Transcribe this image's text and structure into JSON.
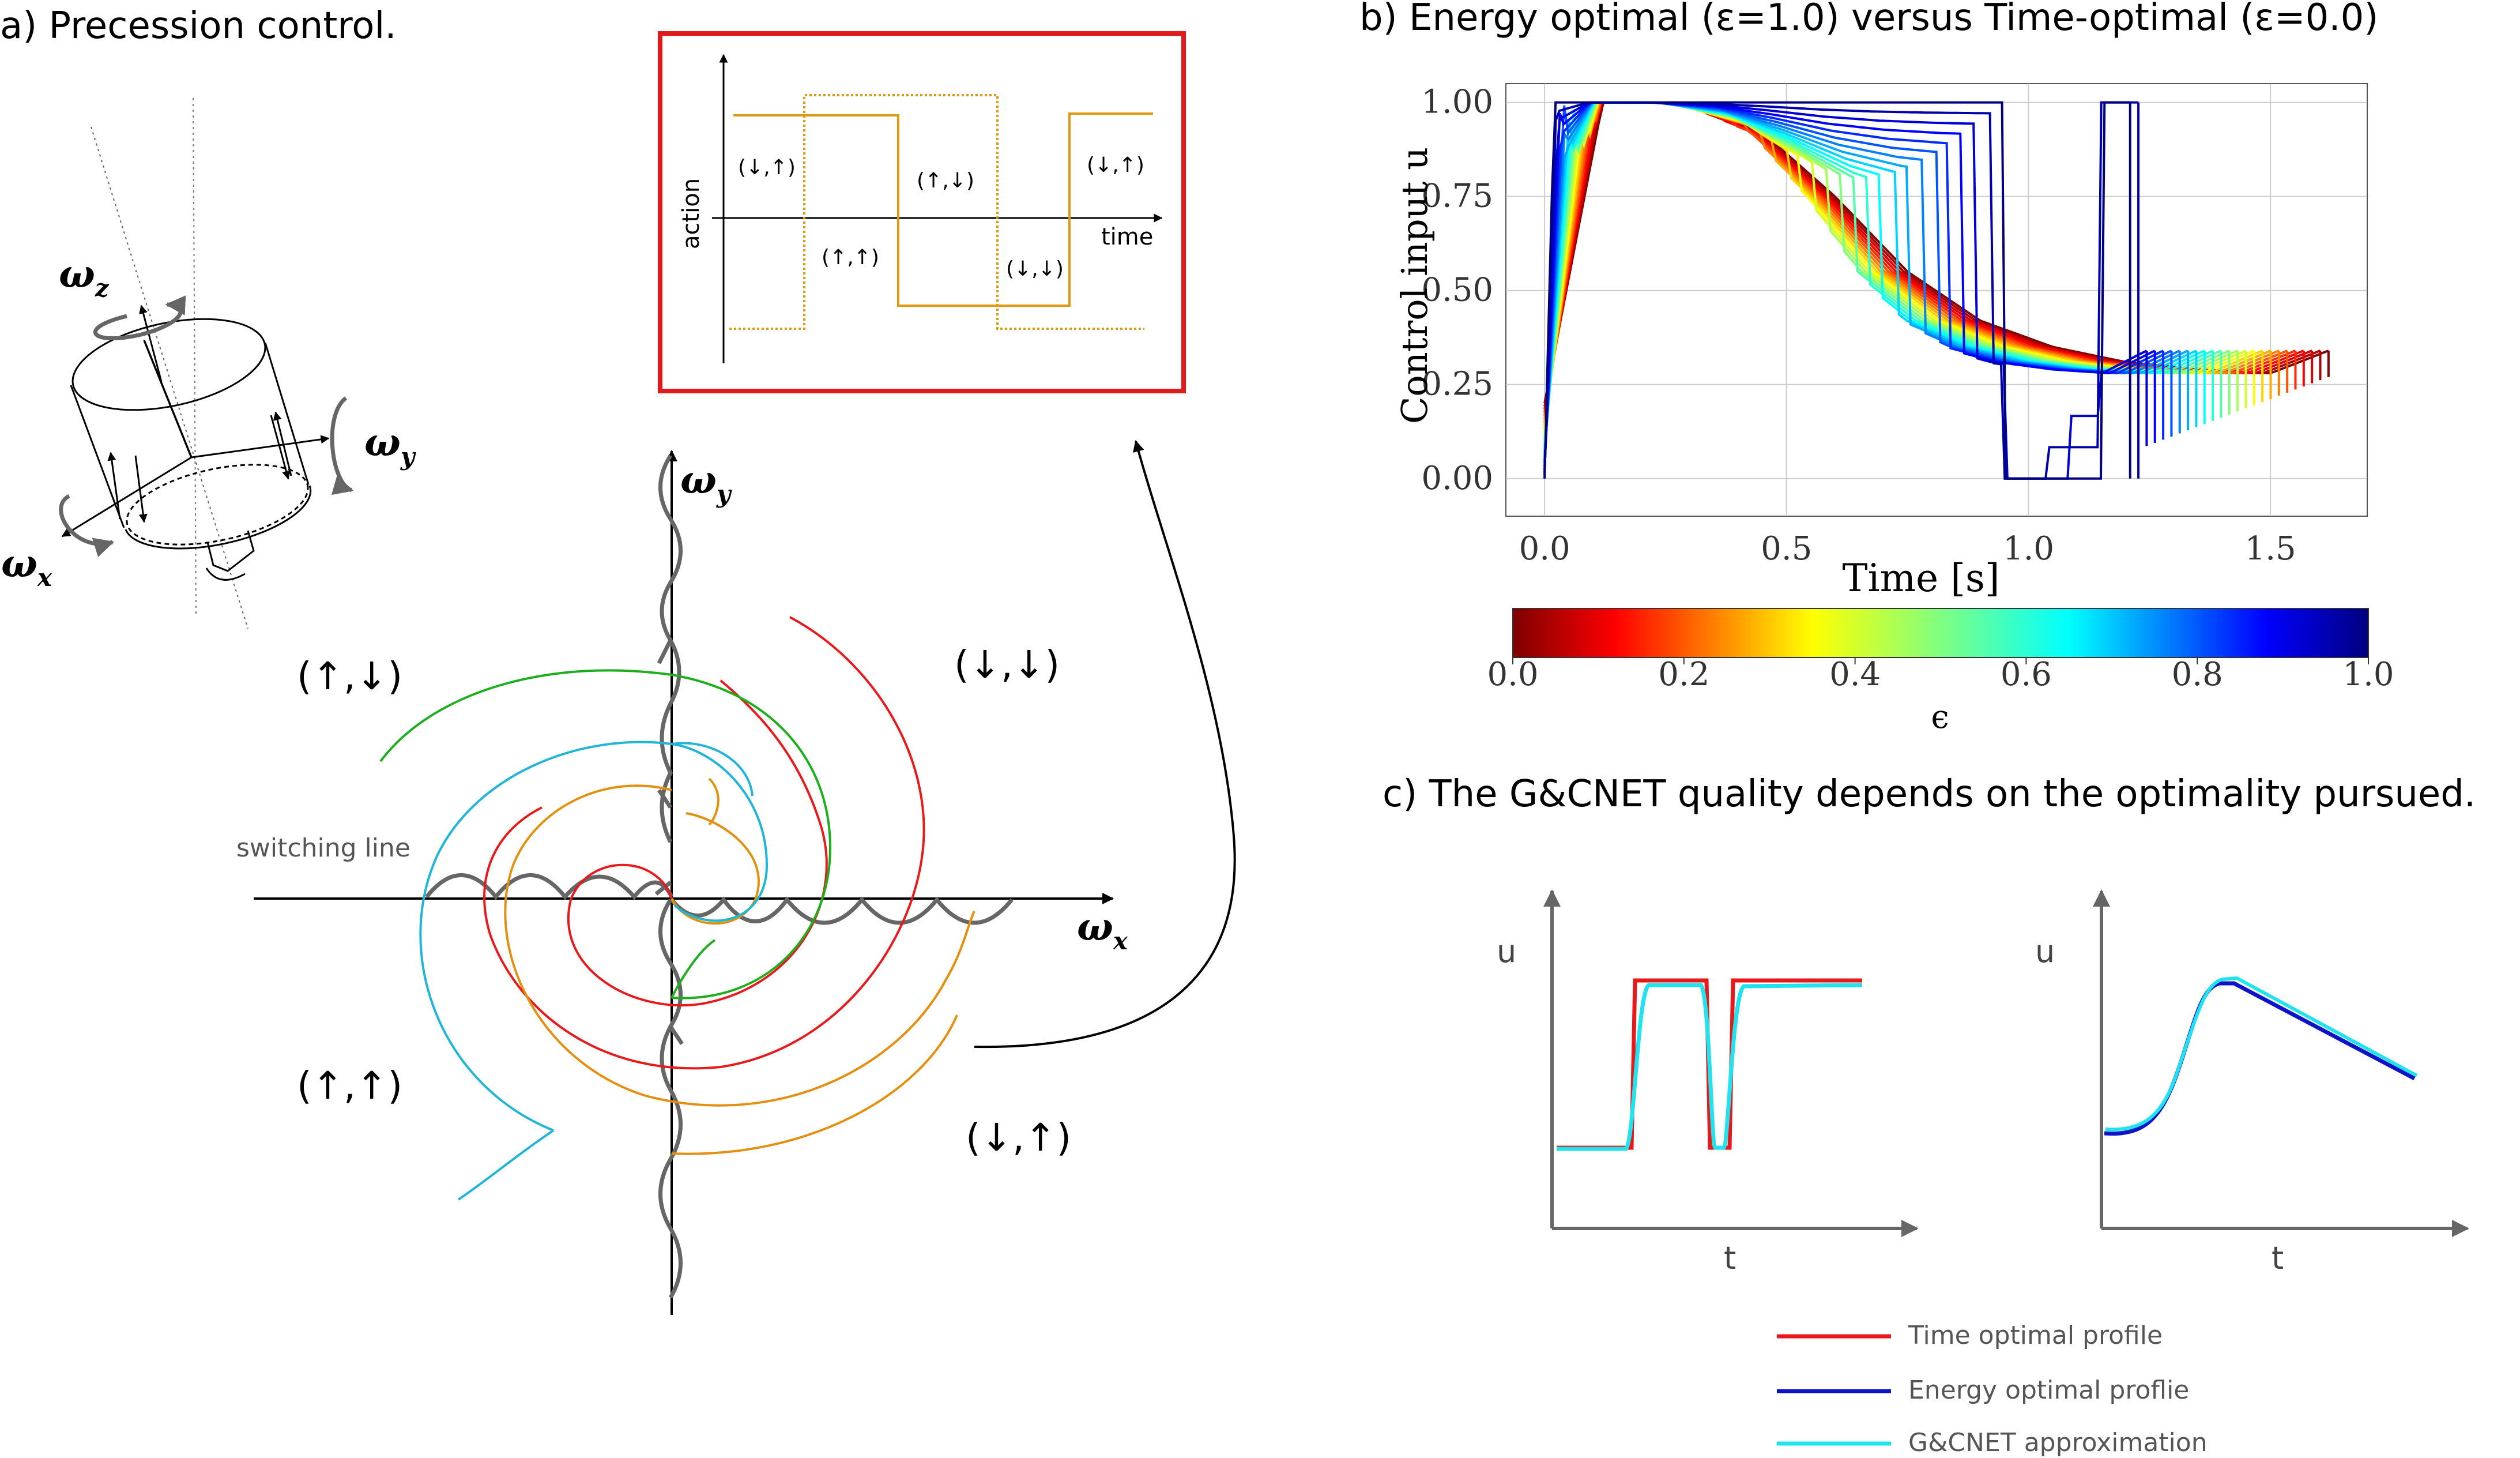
{
  "panel_a": {
    "title": "a) Precession control.",
    "axis_labels": {
      "wx": "ω",
      "wx_sub": "x",
      "wy": "ω",
      "wy_sub": "y",
      "wz": "ω",
      "wz_sub": "z"
    },
    "switching_label": "switching line",
    "quadrants": {
      "upper_left": "(↑,↓)",
      "upper_right": "(↓,↓)",
      "lower_left": "(↑,↑)",
      "lower_right": "(↓,↑)"
    },
    "spiral_colors": [
      "#e8191b",
      "#e38f10",
      "#20b5d6",
      "#1cae1c"
    ],
    "inset": {
      "ylabel": "action",
      "xlabel": "time",
      "labels": [
        "(↓,↑)",
        "(↑,↑)",
        "(↑,↓)",
        "(↓,↓)",
        "(↓,↑)"
      ],
      "line_color": "#e09a12",
      "border_color": "#e11b1b"
    }
  },
  "panel_b": {
    "title": "b) Energy optimal (ε=1.0) versus Time-optimal (ε=0.0)",
    "colorbar_label": "ϵ",
    "colorbar_ticks": [
      "0.0",
      "0.2",
      "0.4",
      "0.6",
      "0.8",
      "1.0"
    ]
  },
  "panel_c": {
    "title": "c) The G&CNET quality depends on the optimality pursued.",
    "ylabel": "u",
    "xlabel": "t",
    "legend": [
      {
        "label": "Time optimal profile",
        "color": "#e8191b"
      },
      {
        "label": "Energy optimal proflie",
        "color": "#0d14c8"
      },
      {
        "label": "G&CNET approximation",
        "color": "#1fe3ee"
      }
    ]
  },
  "chart_data": {
    "type": "line",
    "xlabel": "Time [s]",
    "ylabel": "Control input u",
    "xlim": [
      -0.08,
      1.7
    ],
    "ylim": [
      -0.1,
      1.05
    ],
    "xticks": [
      "0.0",
      "0.5",
      "1.0",
      "1.5"
    ],
    "yticks": [
      "0.00",
      "0.25",
      "0.50",
      "0.75",
      "1.00"
    ],
    "grid": true,
    "colormap": "jet_reversed",
    "series_count": 25,
    "epsilon_range": [
      0.0,
      1.0
    ],
    "energy_optimal_profile": {
      "epsilon": 1.0,
      "x": [
        0.0,
        0.12,
        0.28,
        0.45,
        0.6,
        0.75,
        0.9,
        1.05,
        1.2,
        1.35,
        1.5,
        1.62
      ],
      "y": [
        0.2,
        1.0,
        1.0,
        0.92,
        0.75,
        0.55,
        0.42,
        0.35,
        0.31,
        0.29,
        0.28,
        0.34
      ]
    },
    "time_optimal_profile": {
      "epsilon": 0.0,
      "x": [
        0.0,
        0.02,
        0.95,
        0.96,
        1.0,
        1.15,
        1.16,
        1.21
      ],
      "y": [
        0.0,
        1.0,
        1.0,
        0.0,
        0.0,
        0.0,
        1.0,
        1.0
      ]
    }
  }
}
